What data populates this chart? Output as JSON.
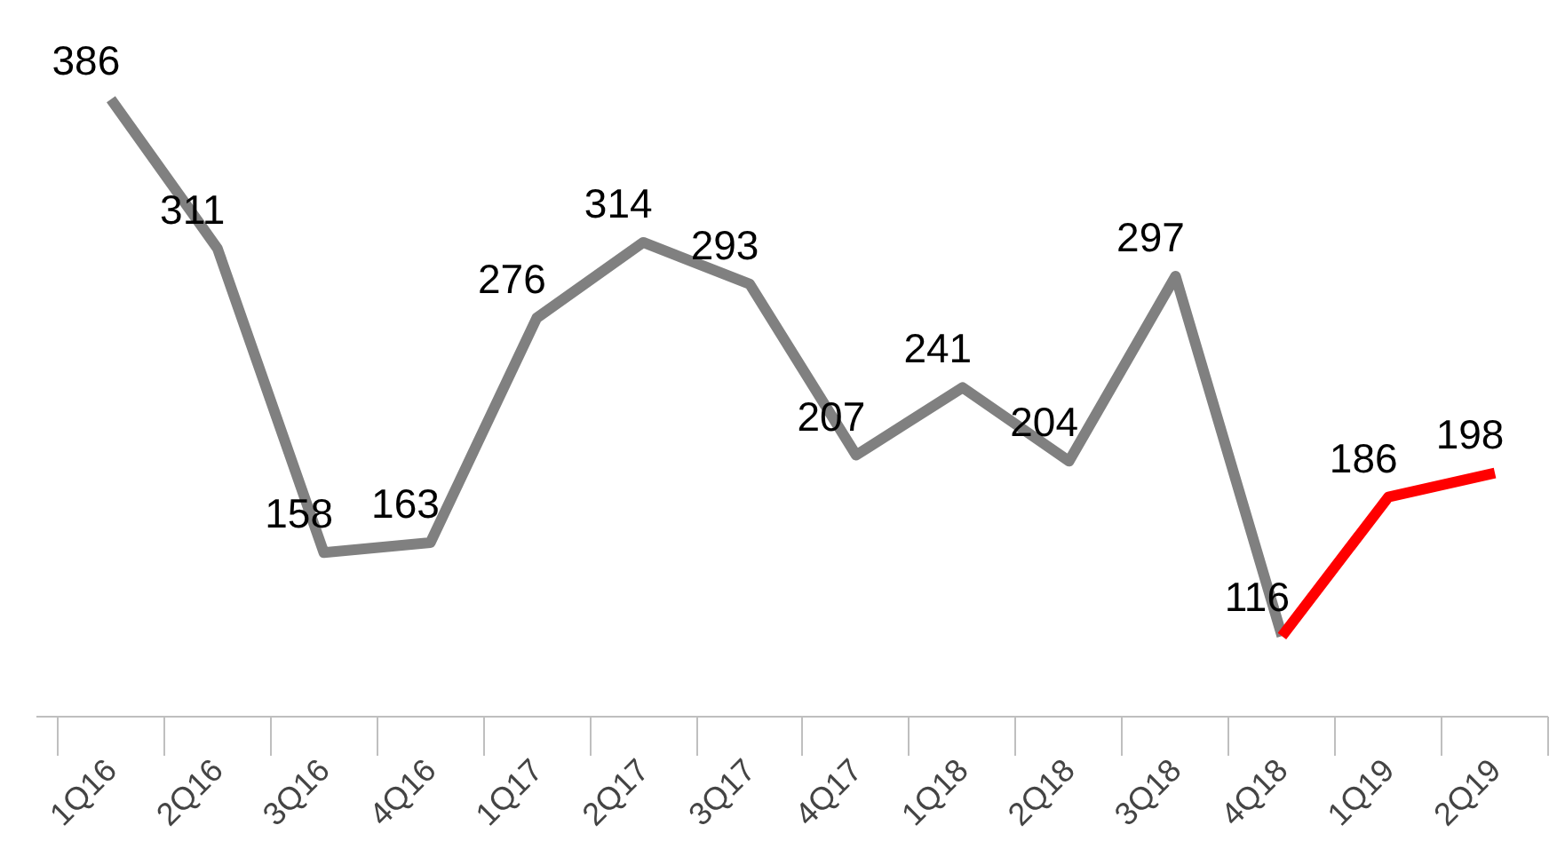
{
  "chart_data": {
    "type": "line",
    "categories": [
      "1Q16",
      "2Q16",
      "3Q16",
      "4Q16",
      "1Q17",
      "2Q17",
      "3Q17",
      "4Q17",
      "1Q18",
      "2Q18",
      "3Q18",
      "4Q18",
      "1Q19",
      "2Q19"
    ],
    "tick_labels": "x",
    "grid": false,
    "marker": "none",
    "line_style": "solid",
    "series": [
      {
        "color": "#808080",
        "values": [
          386,
          311,
          158,
          163,
          276,
          314,
          293,
          207,
          241,
          204,
          297,
          116,
          null,
          null
        ],
        "value_labels": [
          "386",
          "311",
          "158",
          "163",
          "276",
          "314",
          "293",
          "207",
          "241",
          "204",
          "297",
          "116",
          null,
          null
        ]
      },
      {
        "color": "#ff0000",
        "values": [
          null,
          null,
          null,
          null,
          null,
          null,
          null,
          null,
          null,
          null,
          null,
          116,
          186,
          198
        ],
        "value_labels": [
          null,
          null,
          null,
          null,
          null,
          null,
          null,
          null,
          null,
          null,
          null,
          null,
          "186",
          "198"
        ]
      }
    ]
  }
}
